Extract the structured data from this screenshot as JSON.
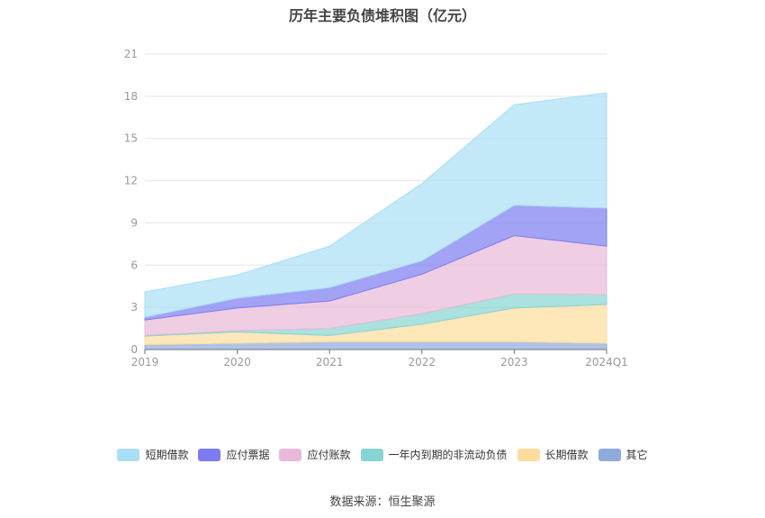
{
  "title": "历年主要负债堆积图（亿元）",
  "source": "数据来源：恒生聚源",
  "chart_data": {
    "type": "area",
    "stacked": true,
    "categories": [
      "2019",
      "2020",
      "2021",
      "2022",
      "2023",
      "2024Q1"
    ],
    "ylim": [
      0,
      21
    ],
    "yticks": [
      0,
      3,
      6,
      9,
      12,
      15,
      18,
      21
    ],
    "series": [
      {
        "name": "其它",
        "color": "#8faadc",
        "values": [
          0.35,
          0.45,
          0.55,
          0.55,
          0.55,
          0.45
        ]
      },
      {
        "name": "长期借款",
        "color": "#fedd9b",
        "values": [
          0.6,
          0.8,
          0.45,
          1.25,
          2.4,
          2.75
        ]
      },
      {
        "name": "一年内到期的非流动负债",
        "color": "#85d5d2",
        "values": [
          0.05,
          0.1,
          0.5,
          0.75,
          1.0,
          0.7
        ]
      },
      {
        "name": "应付账款",
        "color": "#e8b9d9",
        "values": [
          1.1,
          1.6,
          1.95,
          2.8,
          4.15,
          3.45
        ]
      },
      {
        "name": "应付票据",
        "color": "#7b7cf0",
        "values": [
          0.2,
          0.7,
          0.95,
          0.95,
          2.15,
          2.7
        ]
      },
      {
        "name": "短期借款",
        "color": "#a9def5",
        "values": [
          1.8,
          1.65,
          2.95,
          5.5,
          7.15,
          8.2
        ]
      }
    ]
  }
}
